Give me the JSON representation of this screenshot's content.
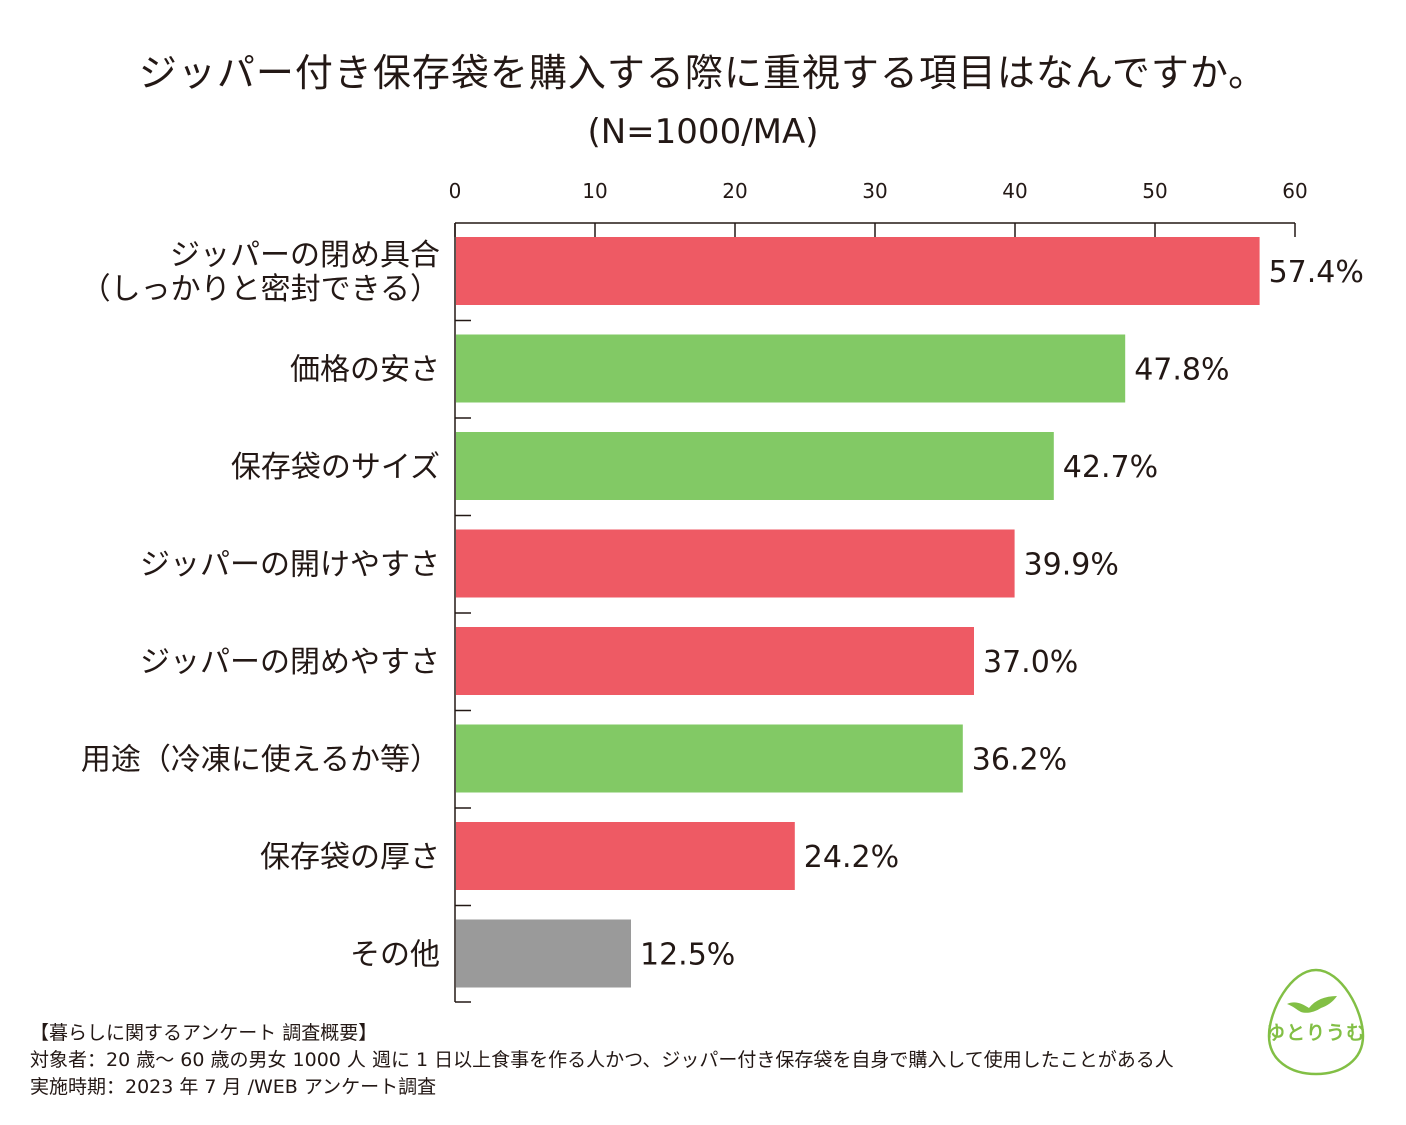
{
  "title": "ジッパー付き保存袋を購入する際に重視する項目はなんですか。",
  "subtitle": "(N=1000/MA)",
  "colors": {
    "red": "#ee5a64",
    "green": "#82c965",
    "gray": "#9a9a9a",
    "axis": "#231815",
    "logo": "#82bf45"
  },
  "chart_data": {
    "type": "bar",
    "orientation": "horizontal",
    "xlim": [
      0,
      60
    ],
    "xticks": [
      "0",
      "10",
      "20",
      "30",
      "40",
      "50",
      "60"
    ],
    "categories": [
      [
        "ジッパーの閉め具合",
        "（しっかりと密封できる）"
      ],
      [
        "価格の安さ"
      ],
      [
        "保存袋のサイズ"
      ],
      [
        "ジッパーの開けやすさ"
      ],
      [
        "ジッパーの閉めやすさ"
      ],
      [
        "用途（冷凍に使えるか等）"
      ],
      [
        "保存袋の厚さ"
      ],
      [
        "その他"
      ]
    ],
    "values": [
      57.4,
      47.8,
      42.7,
      39.9,
      37.0,
      36.2,
      24.2,
      12.5
    ],
    "value_labels": [
      "57.4%",
      "47.8%",
      "42.7%",
      "39.9%",
      "37.0%",
      "36.2%",
      "24.2%",
      "12.5%"
    ],
    "bar_colors": [
      "red",
      "green",
      "green",
      "red",
      "red",
      "green",
      "red",
      "gray"
    ]
  },
  "footer": {
    "heading": "【暮らしに関するアンケート 調査概要】",
    "target": "対象者：20 歳〜 60 歳の男女 1000 人 週に 1 日以上食事を作る人かつ、ジッパー付き保存袋を自身で購入して使用したことがある人",
    "period": "実施時期：2023 年 7 月 /WEB アンケート調査"
  },
  "logo": {
    "text": "ゆとりうむ",
    "icon": "bird-egg-icon"
  }
}
